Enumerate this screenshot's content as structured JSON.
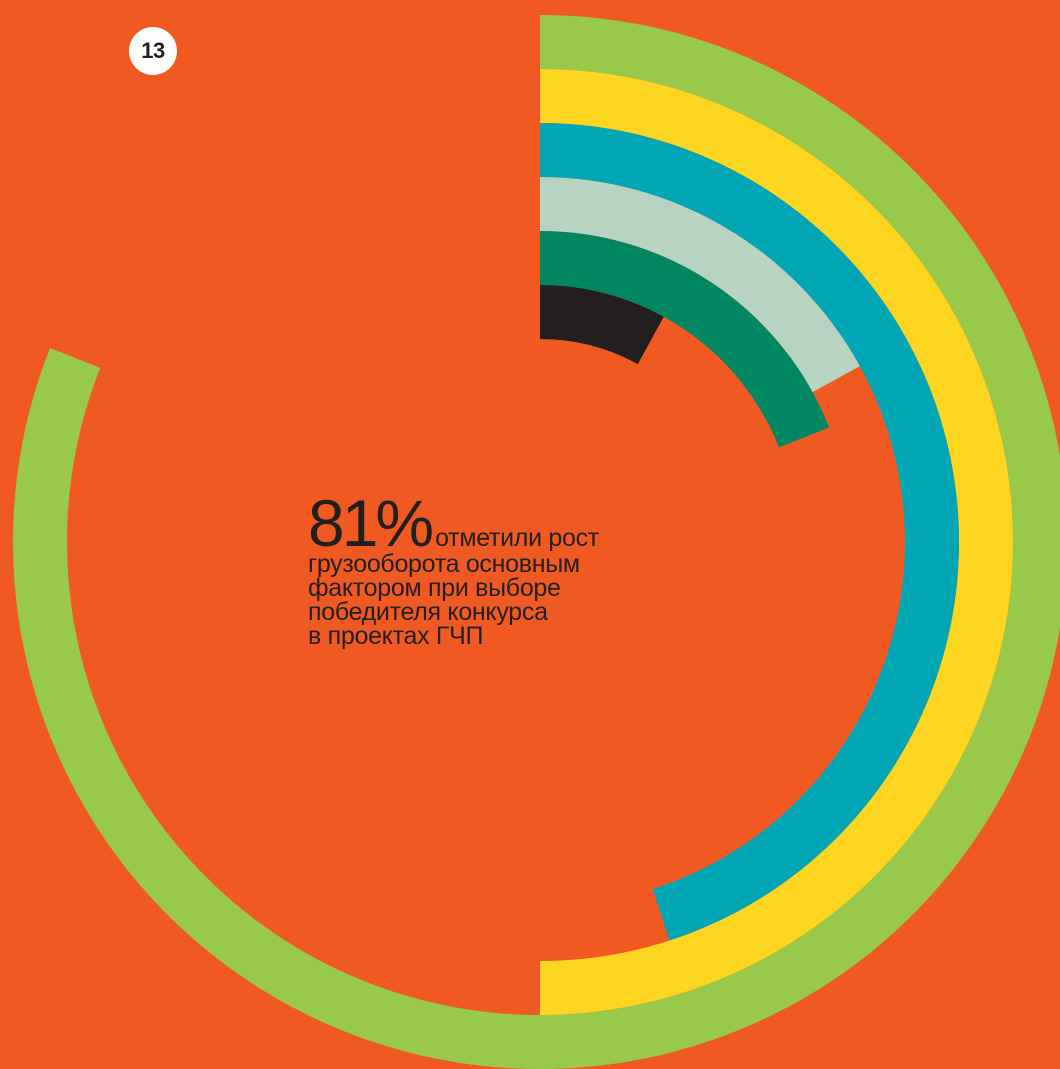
{
  "page": {
    "number": "13",
    "background_color": "#f05a22"
  },
  "headline": {
    "value": "81%",
    "lead": "отметили рост",
    "text_lines": [
      "грузооборота основным",
      "фактором при выборе",
      "победителя конкурса",
      "в проектах ГЧП"
    ]
  },
  "chart_data": {
    "type": "radial-bar",
    "start_angle": "top (12 o'clock), clockwise",
    "series": [
      {
        "value": 81,
        "color": "#98c94a"
      },
      {
        "value": 50,
        "color": "#fed521"
      },
      {
        "value": 45,
        "color": "#00a6b4"
      },
      {
        "value": 17,
        "color": "#b7d3c1"
      },
      {
        "value": 19,
        "color": "#008660"
      },
      {
        "value": 8,
        "color": "#231f20"
      }
    ]
  }
}
